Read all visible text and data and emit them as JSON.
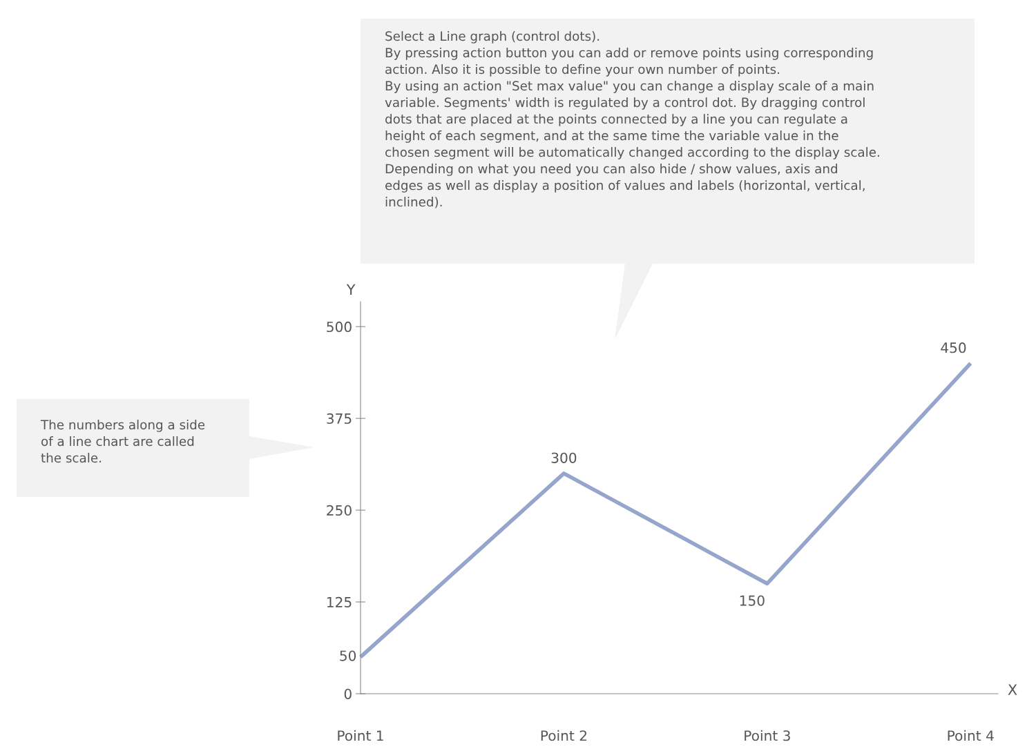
{
  "chart_data": {
    "type": "line",
    "xlabel": "X",
    "ylabel": "Y",
    "categories": [
      "Point 1",
      "Point 2",
      "Point 3",
      "Point 4"
    ],
    "series": [
      {
        "color": "#95a5cc",
        "values": [
          50,
          300,
          150,
          450
        ]
      }
    ],
    "ylim": [
      0,
      534
    ],
    "yticks": [
      0,
      125,
      250,
      375,
      500
    ],
    "data_labels": true,
    "grid": false,
    "marker": "none",
    "line_style": "solid",
    "annotations": [
      "Select a Line graph (control dots).\nBy pressing action button you can add or remove points using corresponding\naction. Also it is possible to define your own number of points.\nBy using an action \"Set max value\" you can change a display scale of a main\nvariable. Segments' width is regulated by a control dot. By dragging control\ndots that are placed at the points connected by a line you can regulate a\nheight of each segment, and at the same time the variable value in the\nchosen segment will be automatically changed according to the display scale.\nDepending on what you need you can also hide / show values, axis and\nedges as well as display a position of values and labels (horizontal, vertical,\ninclined).",
      "The numbers along a side\nof a line chart are called\nthe scale."
    ]
  }
}
